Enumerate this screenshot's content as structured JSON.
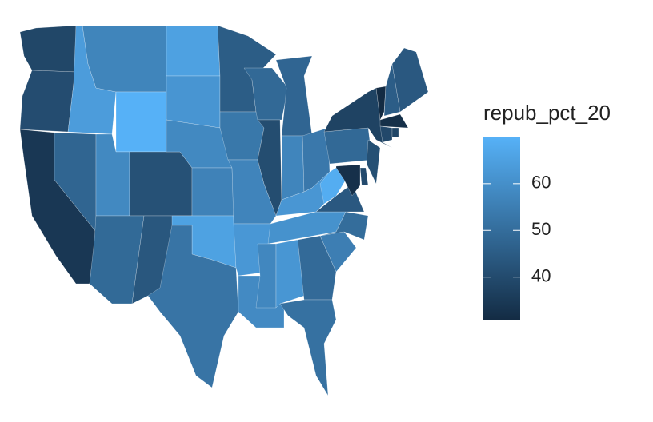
{
  "chart_data": {
    "type": "choropleth",
    "values": [
      38.8,
      40.4,
      34.3,
      47.7,
      63.8,
      56.9,
      69.9,
      58.1,
      41.9,
      49.1,
      43.5,
      65.1,
      61.8,
      58.2,
      56.2,
      65.4,
      52.1,
      45.3,
      53.1,
      56.8,
      62.4,
      58.5,
      48.8,
      40.6,
      47.8,
      57.0,
      53.3,
      62.1,
      60.7,
      57.6,
      62.0,
      49.2,
      51.2,
      55.1,
      49.9,
      44.0,
      68.6,
      48.8,
      37.7,
      30.7,
      45.4,
      44.0,
      32.1,
      39.2,
      38.6,
      41.4,
      39.8,
      32.2
    ],
    "colorbar": {
      "title": "repub_pct_20",
      "lim": [
        30.7,
        69.9
      ],
      "ticks": [
        40,
        50,
        60
      ],
      "low_color": "#132B43",
      "high_color": "#56B1F7"
    }
  }
}
